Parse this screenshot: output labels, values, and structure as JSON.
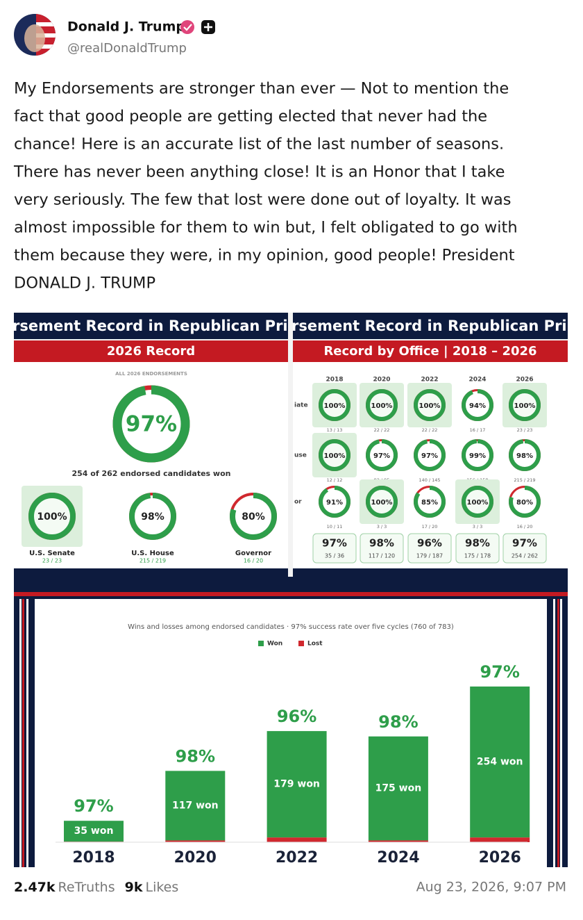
{
  "post": {
    "author": {
      "name": "Donald J. Trump",
      "handle": "@realDonaldTrump"
    },
    "text_lines": [
      "My Endorsements are stronger than ever — Not to mention the",
      "fact that good people are getting elected that never had the",
      "chance! Here is an accurate list of the last number of seasons.",
      "There has never been anything close! It is an Honor that I take",
      "very seriously. The few that lost were done out of loyalty. It was",
      "almost impossible for them to win but, I felt obligated to go with",
      "them because they were, in my opinion, good people! President",
      "DONALD J. TRUMP"
    ],
    "images": [
      {
        "title": "rsement Record in Republican Prima",
        "subtitle": "2026 Record",
        "label": "ALL 2026 ENDORSEMENTS",
        "overall": {
          "pct": 97,
          "label": "97%"
        },
        "summary": "254 of 262 endorsed candidates won",
        "offices": [
          {
            "name": "U.S. Senate",
            "pct": 100,
            "label": "100%",
            "record": "23 / 23"
          },
          {
            "name": "U.S. House",
            "pct": 98,
            "label": "98%",
            "record": "215 / 219"
          },
          {
            "name": "Governor",
            "pct": 80,
            "label": "80%",
            "record": "16 / 20"
          }
        ]
      },
      {
        "title": "rsement Record in Republican Prim",
        "subtitle": "Record by Office | 2018 – 2026",
        "years": [
          "2018",
          "2020",
          "2022",
          "2024",
          "2026"
        ],
        "row_labels": [
          "iate",
          "use",
          "or"
        ],
        "rows": [
          [
            {
              "pct": 100,
              "label": "100%",
              "record": "13 / 13"
            },
            {
              "pct": 100,
              "label": "100%",
              "record": "22 / 22"
            },
            {
              "pct": 100,
              "label": "100%",
              "record": "22 / 22"
            },
            {
              "pct": 94,
              "label": "94%",
              "record": "16 / 17"
            },
            {
              "pct": 100,
              "label": "100%",
              "record": "23 / 23"
            }
          ],
          [
            {
              "pct": 100,
              "label": "100%",
              "record": "12 / 12"
            },
            {
              "pct": 97,
              "label": "97%",
              "record": "92 / 95"
            },
            {
              "pct": 97,
              "label": "97%",
              "record": "140 / 145"
            },
            {
              "pct": 99,
              "label": "99%",
              "record": "156 / 158"
            },
            {
              "pct": 98,
              "label": "98%",
              "record": "215 / 219"
            }
          ],
          [
            {
              "pct": 91,
              "label": "91%",
              "record": "10 / 11"
            },
            {
              "pct": 100,
              "label": "100%",
              "record": "3 / 3"
            },
            {
              "pct": 85,
              "label": "85%",
              "record": "17 / 20"
            },
            {
              "pct": 100,
              "label": "100%",
              "record": "3 / 3"
            },
            {
              "pct": 80,
              "label": "80%",
              "record": "16 / 20"
            }
          ]
        ],
        "totals": [
          {
            "label": "97%",
            "record": "35 / 36"
          },
          {
            "label": "98%",
            "record": "117 / 120"
          },
          {
            "label": "96%",
            "record": "179 / 187"
          },
          {
            "label": "98%",
            "record": "175 / 178"
          },
          {
            "label": "97%",
            "record": "254 / 262"
          }
        ]
      },
      {
        "chart_data": {
          "type": "bar",
          "subtitle": "Wins and losses among endorsed candidates · 97% success rate over five cycles (760 of 783)",
          "categories": [
            "2018",
            "2020",
            "2022",
            "2024",
            "2026"
          ],
          "series": [
            {
              "name": "Won",
              "color": "#2e9e4a",
              "values": [
                35,
                117,
                179,
                175,
                254
              ],
              "value_labels": [
                "35 won",
                "117 won",
                "179 won",
                "175 won",
                "254 won"
              ]
            },
            {
              "name": "Lost",
              "color": "#d0282e",
              "values": [
                1,
                3,
                8,
                3,
                8
              ]
            }
          ],
          "percent_labels": [
            "97%",
            "98%",
            "96%",
            "98%",
            "97%"
          ]
        }
      }
    ],
    "stats": {
      "retruths": "2.47k",
      "retruths_label": "ReTruths",
      "likes": "9k",
      "likes_label": "Likes"
    },
    "timestamp": "Aug 23, 2026, 9:07 PM"
  }
}
